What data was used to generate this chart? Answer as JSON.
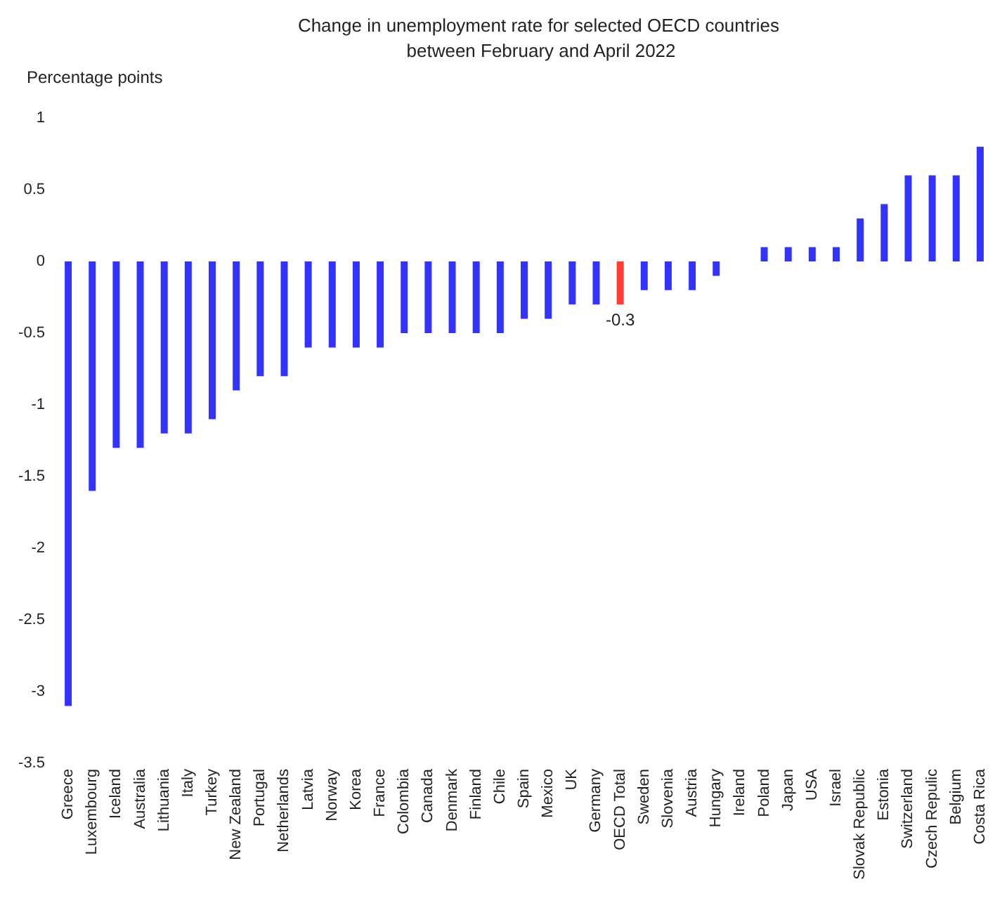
{
  "chart_data": {
    "type": "bar",
    "title": "Change in unemployment rate for selected OECD countries between February and April 2022",
    "ylabel": "Percentage points",
    "categories": [
      "Greece",
      "Luxembourg",
      "Iceland",
      "Australia",
      "Lithuania",
      "Italy",
      "Turkey",
      "New Zealand",
      "Portugal",
      "Netherlands",
      "Latvia",
      "Norway",
      "Korea",
      "France",
      "Colombia",
      "Canada",
      "Denmark",
      "Finland",
      "Chile",
      "Spain",
      "Mexico",
      "UK",
      "Germany",
      "OECD Total",
      "Sweden",
      "Slovenia",
      "Austria",
      "Hungary",
      "Ireland",
      "Poland",
      "Japan",
      "USA",
      "Israel",
      "Slovak Republic",
      "Estonia",
      "Switzerland",
      "Czech Repulic",
      "Belgium",
      "Costa Rica"
    ],
    "values": [
      -3.1,
      -1.6,
      -1.3,
      -1.3,
      -1.2,
      -1.2,
      -1.1,
      -0.9,
      -0.8,
      -0.8,
      -0.6,
      -0.6,
      -0.6,
      -0.6,
      -0.5,
      -0.5,
      -0.5,
      -0.5,
      -0.5,
      -0.4,
      -0.4,
      -0.3,
      -0.3,
      -0.3,
      -0.2,
      -0.2,
      -0.2,
      -0.1,
      0,
      0.1,
      0.1,
      0.1,
      0.1,
      0.3,
      0.4,
      0.6,
      0.6,
      0.6,
      0.8
    ],
    "colors": [
      "#3333ff",
      "#3333ff",
      "#3333ff",
      "#3333ff",
      "#3333ff",
      "#3333ff",
      "#3333ff",
      "#3333ff",
      "#3333ff",
      "#3333ff",
      "#3333ff",
      "#3333ff",
      "#3333ff",
      "#3333ff",
      "#3333ff",
      "#3333ff",
      "#3333ff",
      "#3333ff",
      "#3333ff",
      "#3333ff",
      "#3333ff",
      "#3333ff",
      "#3333ff",
      "#ff3d33",
      "#3333ff",
      "#3333ff",
      "#3333ff",
      "#3333ff",
      "#3333ff",
      "#3333ff",
      "#3333ff",
      "#3333ff",
      "#3333ff",
      "#3333ff",
      "#3333ff",
      "#3333ff",
      "#3333ff",
      "#3333ff",
      "#3333ff"
    ],
    "value_labels": [
      null,
      null,
      null,
      null,
      null,
      null,
      null,
      null,
      null,
      null,
      null,
      null,
      null,
      null,
      null,
      null,
      null,
      null,
      null,
      null,
      null,
      null,
      null,
      "-0.3",
      null,
      null,
      null,
      null,
      null,
      null,
      null,
      null,
      null,
      null,
      null,
      null,
      null,
      null,
      null
    ],
    "ylim": [
      -3.5,
      1
    ],
    "yticks": [
      -3.5,
      -3,
      -2.5,
      -2,
      -1.5,
      -1,
      -0.5,
      0,
      0.5,
      1
    ],
    "grid": false
  }
}
